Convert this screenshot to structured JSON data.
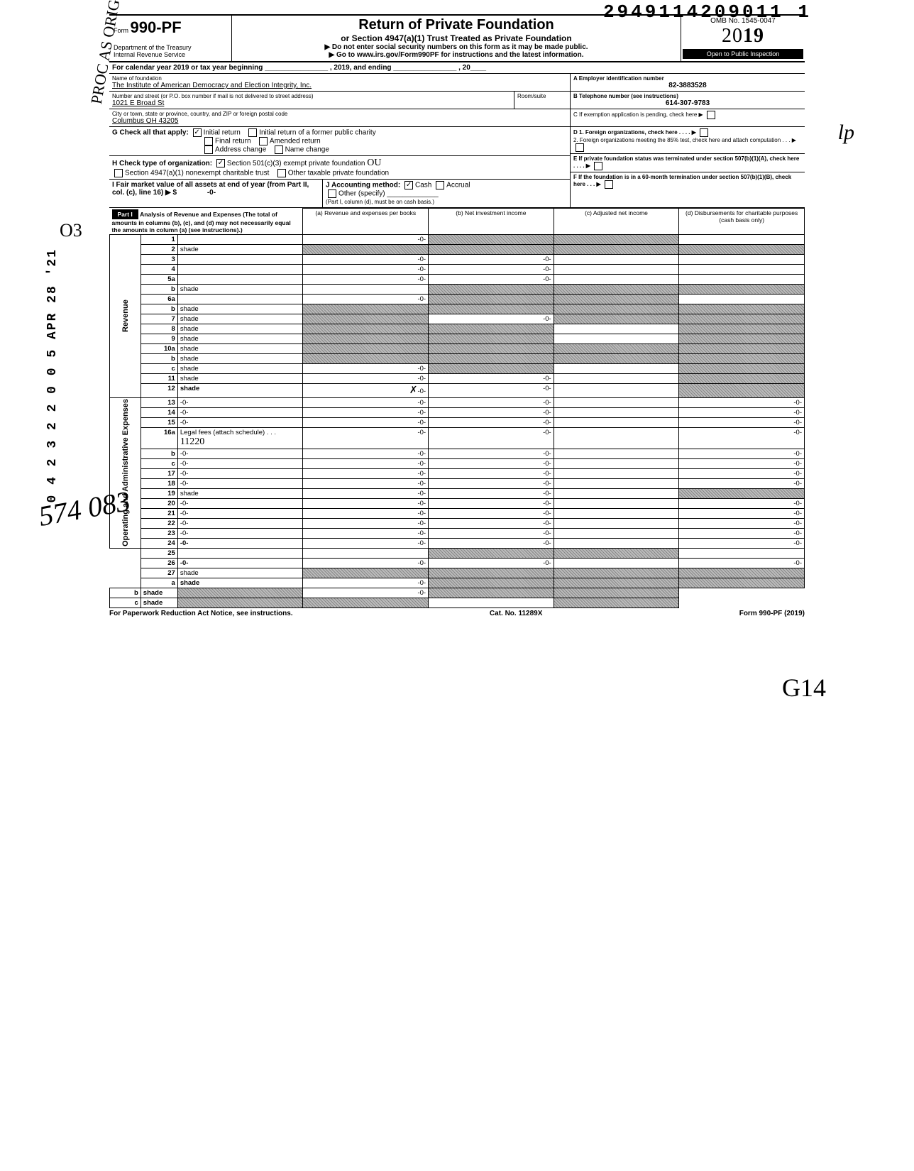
{
  "barcode_number": "2949114209011  1",
  "form": {
    "label": "Form",
    "number": "990-PF",
    "dept1": "Department of the Treasury",
    "dept2": "Internal Revenue Service",
    "title": "Return of Private Foundation",
    "subtitle": "or Section 4947(a)(1) Trust Treated as Private Foundation",
    "note1": "▶ Do not enter social security numbers on this form as it may be made public.",
    "note2": "▶ Go to www.irs.gov/Form990PF for instructions and the latest information.",
    "omb": "OMB No. 1545-0047",
    "year_outline": "20",
    "year_bold": "19",
    "open": "Open to Public Inspection"
  },
  "cal_line": "For calendar year 2019 or tax year beginning ________________ , 2019, and ending ________________ , 20____",
  "identity": {
    "name_label": "Name of foundation",
    "name": "The Institute of American Democracy and Election Integrity, Inc.",
    "addr_label": "Number and street (or P.O. box number if mail is not delivered to street address)",
    "room_label": "Room/suite",
    "addr": "1021 E Broad St",
    "citylabel": "City or town, state or province, country, and ZIP or foreign postal code",
    "city": "Columbus OH  43205",
    "ein_label": "A  Employer identification number",
    "ein": "82-3883528",
    "phone_label": "B  Telephone number (see instructions)",
    "phone": "614-307-9783",
    "c_label": "C  If exemption application is pending, check here ▶",
    "d1": "D  1. Foreign organizations, check here . . . . ▶",
    "d2": "2. Foreign organizations meeting the 85% test, check here and attach computation  . . . ▶",
    "e": "E  If private foundation status was terminated under section 507(b)(1)(A), check here . . . . ▶",
    "f": "F  If the foundation is in a 60-month termination under section 507(b)(1)(B), check here . . . ▶"
  },
  "g": {
    "label": "G  Check all that apply:",
    "opts": [
      "Initial return",
      "Initial return of a former public charity",
      "Final return",
      "Amended return",
      "Address change",
      "Name change"
    ],
    "checked": [
      true,
      false,
      false,
      false,
      false,
      false
    ]
  },
  "h": {
    "label": "H  Check type of organization:",
    "opts": [
      "Section 501(c)(3) exempt private foundation",
      "Section 4947(a)(1) nonexempt charitable trust",
      "Other taxable private foundation"
    ],
    "checked": [
      true,
      false,
      false
    ]
  },
  "i": {
    "label": "I  Fair market value of all assets at end of year (from Part II, col. (c), line 16) ▶ $",
    "value": "-0-"
  },
  "j": {
    "label": "J  Accounting method:",
    "opts": [
      "Cash",
      "Accrual",
      "Other (specify)"
    ],
    "checked": [
      true,
      false,
      false
    ],
    "note": "(Part I, column (d), must be on cash basis.)"
  },
  "part1": {
    "tag": "Part I",
    "head": "Analysis of Revenue and Expenses (The total of amounts in columns (b), (c), and (d) may not necessarily equal the amounts in column (a) (see instructions).)",
    "cols": [
      "(a) Revenue and expenses per books",
      "(b) Net investment income",
      "(c) Adjusted net income",
      "(d) Disbursements for charitable purposes (cash basis only)"
    ]
  },
  "hand_11220": "11220",
  "hand_x": "✗",
  "hand_lp": "lp",
  "hand_ou": "OU",
  "side_stamp": "0 4 2 3 2 2 0 0 5 APR 28 '21",
  "rows": [
    {
      "n": "1",
      "d": "",
      "a": "-0-",
      "b": "shade",
      "c": "shade"
    },
    {
      "n": "2",
      "d": "shade",
      "a": "shade",
      "b": "shade",
      "c": "shade"
    },
    {
      "n": "3",
      "d": "",
      "a": "-0-",
      "b": "-0-",
      "c": ""
    },
    {
      "n": "4",
      "d": "",
      "a": "-0-",
      "b": "-0-",
      "c": ""
    },
    {
      "n": "5a",
      "d": "",
      "a": "-0-",
      "b": "-0-",
      "c": ""
    },
    {
      "n": "b",
      "d": "shade",
      "a": "",
      "b": "shade",
      "c": "shade"
    },
    {
      "n": "6a",
      "d": "",
      "a": "-0-",
      "b": "shade",
      "c": "shade"
    },
    {
      "n": "b",
      "d": "shade",
      "a": "shade",
      "b": "shade",
      "c": "shade"
    },
    {
      "n": "7",
      "d": "shade",
      "a": "shade",
      "b": "-0-",
      "c": "shade"
    },
    {
      "n": "8",
      "d": "shade",
      "a": "shade",
      "b": "shade",
      "c": ""
    },
    {
      "n": "9",
      "d": "shade",
      "a": "shade",
      "b": "shade",
      "c": ""
    },
    {
      "n": "10a",
      "d": "shade",
      "a": "shade",
      "b": "shade",
      "c": "shade"
    },
    {
      "n": "b",
      "d": "shade",
      "a": "shade",
      "b": "shade",
      "c": "shade"
    },
    {
      "n": "c",
      "d": "shade",
      "a": "-0-",
      "b": "shade",
      "c": ""
    },
    {
      "n": "11",
      "d": "shade",
      "a": "-0-",
      "b": "-0-",
      "c": ""
    },
    {
      "n": "12",
      "d": "shade",
      "a": "X-0-",
      "b": "-0-",
      "c": "",
      "bold": true
    },
    {
      "n": "13",
      "d": "-0-",
      "a": "-0-",
      "b": "-0-",
      "c": ""
    },
    {
      "n": "14",
      "d": "-0-",
      "a": "-0-",
      "b": "-0-",
      "c": ""
    },
    {
      "n": "15",
      "d": "-0-",
      "a": "-0-",
      "b": "-0-",
      "c": ""
    },
    {
      "n": "16a",
      "d": "-0-",
      "a": "-0-",
      "b": "-0-",
      "c": ""
    },
    {
      "n": "b",
      "d": "-0-",
      "a": "-0-",
      "b": "-0-",
      "c": ""
    },
    {
      "n": "c",
      "d": "-0-",
      "a": "-0-",
      "b": "-0-",
      "c": ""
    },
    {
      "n": "17",
      "d": "-0-",
      "a": "-0-",
      "b": "-0-",
      "c": ""
    },
    {
      "n": "18",
      "d": "-0-",
      "a": "-0-",
      "b": "-0-",
      "c": ""
    },
    {
      "n": "19",
      "d": "shade",
      "a": "-0-",
      "b": "-0-",
      "c": ""
    },
    {
      "n": "20",
      "d": "-0-",
      "a": "-0-",
      "b": "-0-",
      "c": ""
    },
    {
      "n": "21",
      "d": "-0-",
      "a": "-0-",
      "b": "-0-",
      "c": ""
    },
    {
      "n": "22",
      "d": "-0-",
      "a": "-0-",
      "b": "-0-",
      "c": ""
    },
    {
      "n": "23",
      "d": "-0-",
      "a": "-0-",
      "b": "-0-",
      "c": ""
    },
    {
      "n": "24",
      "d": "-0-",
      "a": "-0-",
      "b": "-0-",
      "c": "",
      "bold": true
    },
    {
      "n": "25",
      "d": "",
      "a": "",
      "b": "shade",
      "c": "shade"
    },
    {
      "n": "26",
      "d": "-0-",
      "a": "-0-",
      "b": "-0-",
      "c": "",
      "bold": true
    },
    {
      "n": "27",
      "d": "shade",
      "a": "shade",
      "b": "shade",
      "c": "shade"
    },
    {
      "n": "a",
      "d": "shade",
      "a": "-0-",
      "b": "shade",
      "c": "shade",
      "bold": true
    },
    {
      "n": "b",
      "d": "shade",
      "a": "shade",
      "b": "-0-",
      "c": "shade",
      "bold": true
    },
    {
      "n": "c",
      "d": "shade",
      "a": "shade",
      "b": "shade",
      "c": "",
      "bold": true
    }
  ],
  "vlabels": {
    "rev": "Revenue",
    "exp": "Operating and Administrative Expenses"
  },
  "footer": {
    "left": "For Paperwork Reduction Act Notice, see instructions.",
    "mid": "Cat. No. 11289X",
    "right": "Form 990-PF (2019)"
  },
  "marginalia": {
    "proc": "PROC AS ORIG",
    "o3": "O3",
    "sig": "574 083",
    "g14": "G14"
  }
}
